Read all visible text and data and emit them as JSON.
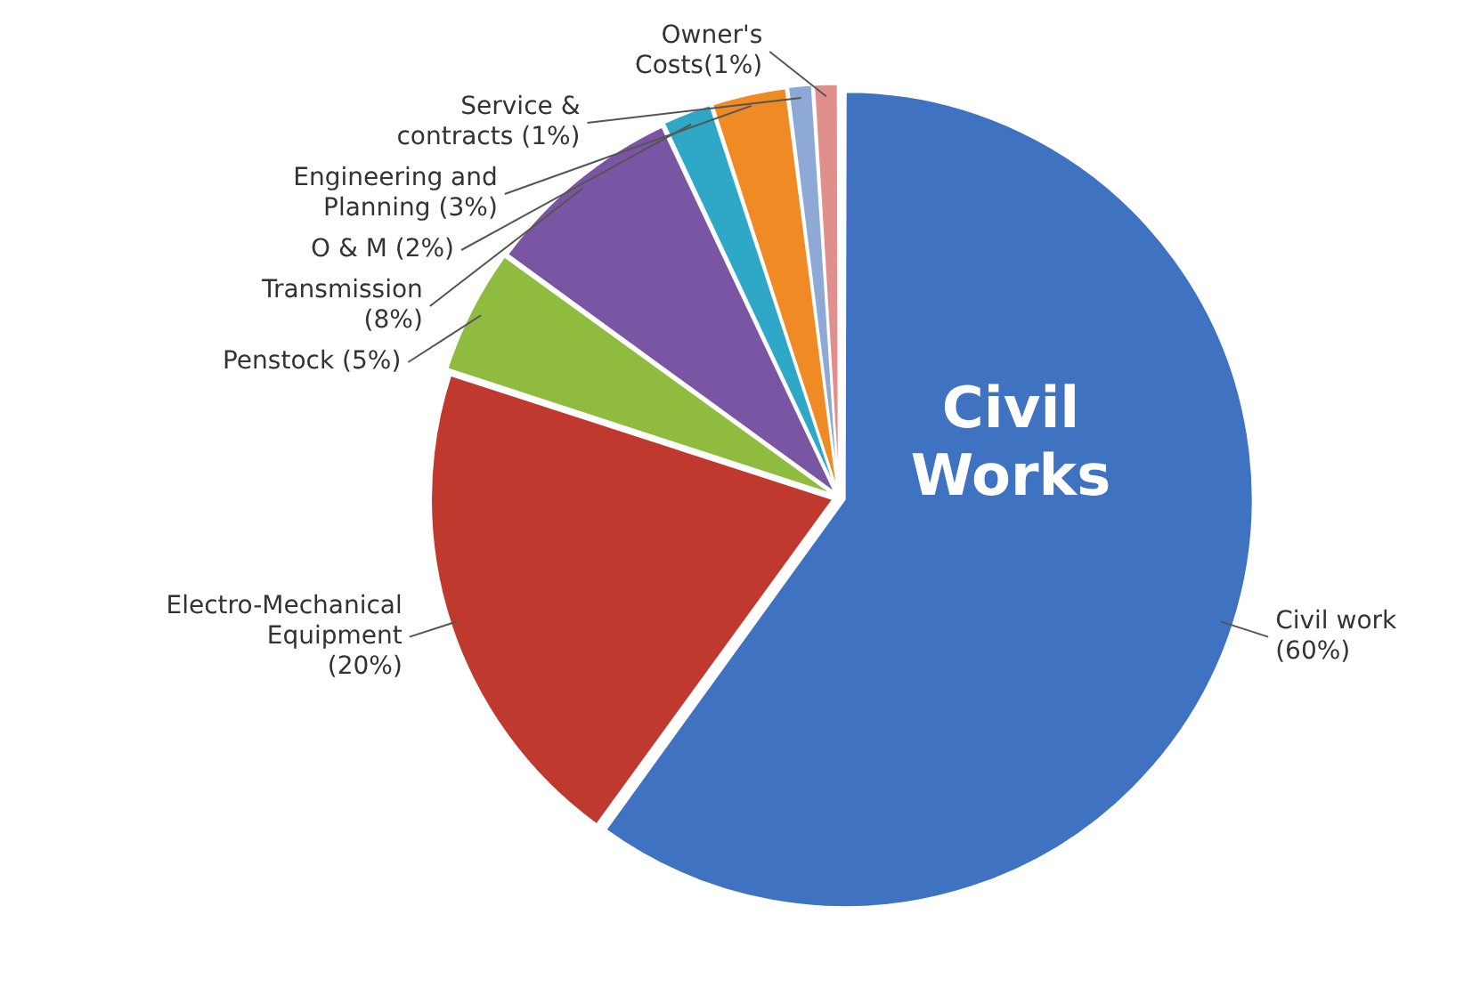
{
  "chart_data": {
    "type": "pie",
    "categories": [
      "Civil work (60%)",
      "Electro-Mechanical Equipment (20%)",
      "Penstock (5%)",
      "Transmission (8%)",
      "O & M (2%)",
      "Engineering and Planning (3%)",
      "Service & contracts (1%)",
      "Owner's Costs(1%)"
    ],
    "values": [
      60,
      20,
      5,
      8,
      2,
      3,
      1,
      1
    ],
    "colors": [
      "#3f72c0",
      "#c0392f",
      "#8fbb3e",
      "#7a55a3",
      "#2fa7c6",
      "#f08a24",
      "#8fa9d6",
      "#e08f8c"
    ],
    "annotations": [
      "Civil Works"
    ],
    "legend": false
  }
}
